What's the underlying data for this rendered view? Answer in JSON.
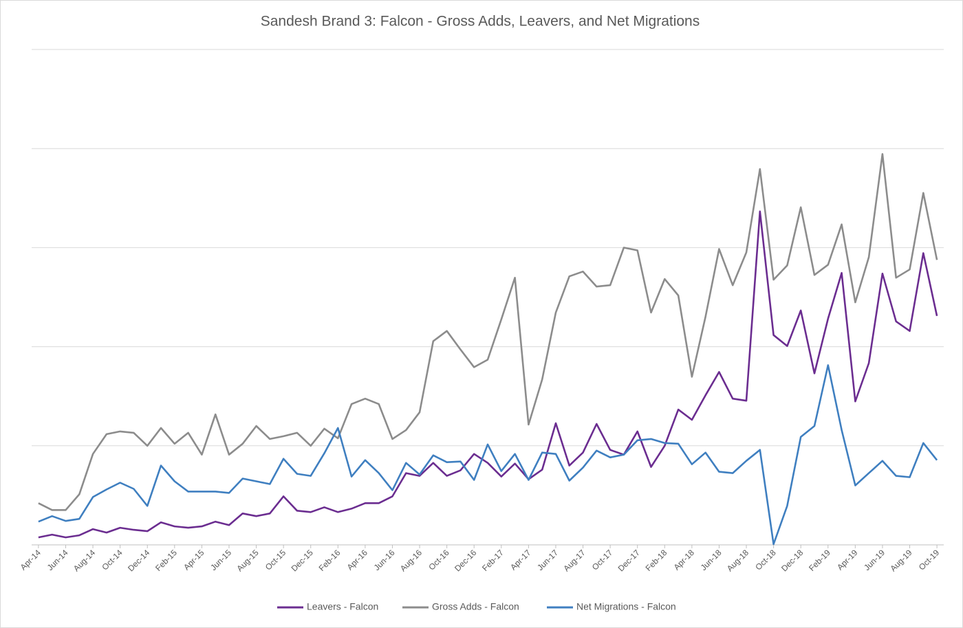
{
  "chart_data": {
    "type": "line",
    "title": "Sandesh Brand 3: Falcon - Gross Adds, Leavers, and Net Migrations",
    "categories": [
      "Apr-14",
      null,
      "Jun-14",
      null,
      "Aug-14",
      null,
      "Oct-14",
      null,
      "Dec-14",
      null,
      "Feb-15",
      null,
      "Apr-15",
      null,
      "Jun-15",
      null,
      "Aug-15",
      null,
      "Oct-15",
      null,
      "Dec-15",
      null,
      "Feb-16",
      null,
      "Apr-16",
      null,
      "Jun-16",
      null,
      "Aug-16",
      null,
      "Oct-16",
      null,
      "Dec-16",
      null,
      "Feb-17",
      null,
      "Apr-17",
      null,
      "Jun-17",
      null,
      "Aug-17",
      null,
      "Oct-17",
      null,
      "Dec-17",
      null,
      "Feb-18",
      null,
      "Apr-18",
      null,
      "Jun-18",
      null,
      "Aug-18",
      null,
      "Oct-18",
      null,
      "Dec-18",
      null,
      "Feb-19",
      null,
      "Apr-19",
      null,
      "Jun-19",
      null,
      "Aug-19",
      null,
      "Oct-19"
    ],
    "series": [
      {
        "name": "Leavers - Falcon",
        "color": "#6b2d90",
        "values": [
          11,
          15,
          11,
          14,
          23,
          18,
          25,
          22,
          20,
          33,
          27,
          25,
          27,
          34,
          29,
          46,
          42,
          46,
          71,
          50,
          48,
          55,
          48,
          53,
          61,
          61,
          71,
          105,
          101,
          120,
          101,
          109,
          133,
          120,
          100,
          119,
          96,
          110,
          178,
          116,
          135,
          177,
          139,
          132,
          166,
          114,
          145,
          198,
          183,
          219,
          253,
          214,
          211,
          488,
          307,
          291,
          343,
          251,
          331,
          398,
          210,
          266,
          397,
          327,
          313,
          427,
          335
        ]
      },
      {
        "name": "Gross Adds - Falcon",
        "color": "#8c8c8c",
        "values": [
          61,
          51,
          51,
          74,
          133,
          162,
          166,
          164,
          145,
          171,
          148,
          164,
          132,
          191,
          132,
          148,
          174,
          155,
          159,
          164,
          145,
          170,
          156,
          206,
          214,
          206,
          155,
          168,
          194,
          298,
          313,
          286,
          260,
          271,
          330,
          391,
          176,
          242,
          340,
          393,
          400,
          378,
          380,
          435,
          431,
          340,
          389,
          365,
          246,
          334,
          433,
          380,
          428,
          550,
          388,
          409,
          494,
          395,
          410,
          469,
          355,
          421,
          572,
          391,
          403,
          515,
          417
        ]
      },
      {
        "name": "Net Migrations - Falcon",
        "color": "#3f7fc0",
        "values": [
          34,
          42,
          35,
          38,
          70,
          81,
          91,
          82,
          57,
          116,
          93,
          78,
          78,
          78,
          76,
          97,
          93,
          89,
          126,
          104,
          101,
          134,
          171,
          100,
          124,
          105,
          80,
          120,
          103,
          131,
          121,
          122,
          95,
          147,
          108,
          133,
          95,
          135,
          133,
          94,
          113,
          138,
          128,
          132,
          153,
          155,
          149,
          148,
          118,
          135,
          107,
          105,
          123,
          139,
          1,
          57,
          158,
          174,
          263,
          168,
          87,
          105,
          123,
          101,
          99,
          149,
          124
        ]
      }
    ],
    "ylim": [
      0,
      725
    ],
    "yticks": [
      0,
      145,
      290,
      435,
      580,
      725
    ],
    "grid": true
  }
}
